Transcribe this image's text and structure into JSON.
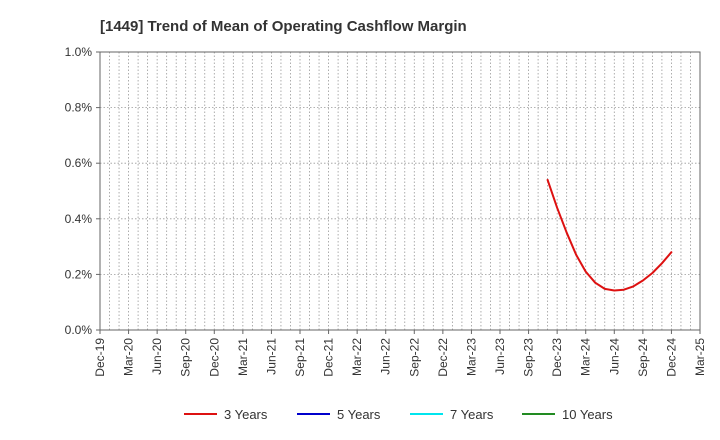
{
  "chart_data": {
    "type": "line",
    "title": "[1449]  Trend of Mean of Operating Cashflow Margin",
    "xlabel": "",
    "ylabel": "",
    "x": [
      "Dec-19",
      "Mar-20",
      "Jun-20",
      "Sep-20",
      "Dec-20",
      "Mar-21",
      "Jun-21",
      "Sep-21",
      "Dec-21",
      "Mar-22",
      "Jun-22",
      "Sep-22",
      "Dec-22",
      "Mar-23",
      "Jun-23",
      "Sep-23",
      "Dec-23",
      "Mar-24",
      "Jun-24",
      "Sep-24",
      "Dec-24",
      "Mar-25"
    ],
    "ylim": [
      0,
      1.0
    ],
    "yticks": [
      "0.0%",
      "0.2%",
      "0.4%",
      "0.6%",
      "0.8%",
      "1.0%"
    ],
    "grid": true,
    "legend_position": "bottom",
    "series": [
      {
        "name": "3 Years",
        "color": "#dd1111",
        "points": [
          [
            "Nov-23",
            0.54
          ],
          [
            "Dec-23",
            0.44
          ],
          [
            "Jan-24",
            0.35
          ],
          [
            "Feb-24",
            0.27
          ],
          [
            "Mar-24",
            0.21
          ],
          [
            "Apr-24",
            0.17
          ],
          [
            "May-24",
            0.148
          ],
          [
            "Jun-24",
            0.142
          ],
          [
            "Jul-24",
            0.145
          ],
          [
            "Aug-24",
            0.157
          ],
          [
            "Sep-24",
            0.178
          ],
          [
            "Oct-24",
            0.205
          ],
          [
            "Nov-24",
            0.24
          ],
          [
            "Dec-24",
            0.28
          ]
        ]
      },
      {
        "name": "5 Years",
        "color": "#0000cc",
        "points": []
      },
      {
        "name": "7 Years",
        "color": "#00e5ee",
        "points": []
      },
      {
        "name": "10 Years",
        "color": "#228b22",
        "points": []
      }
    ]
  }
}
